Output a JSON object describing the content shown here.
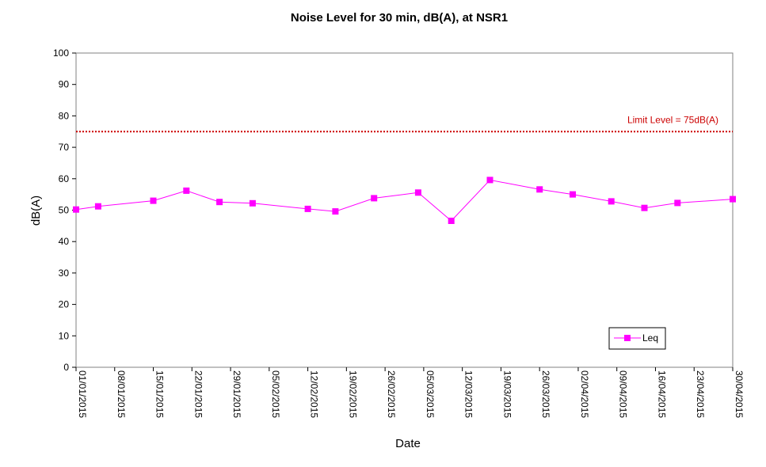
{
  "chart_data": {
    "type": "line",
    "title": "Noise Level for 30 min, dB(A), at NSR1",
    "xlabel": "Date",
    "ylabel": "dB(A)",
    "ylim": [
      0,
      100
    ],
    "yticks": [
      0,
      10,
      20,
      30,
      40,
      50,
      60,
      70,
      80,
      90,
      100
    ],
    "xlim": [
      "01/01/2015",
      "30/04/2015"
    ],
    "xtick_labels": [
      "01/01/2015",
      "08/01/2015",
      "15/01/2015",
      "22/01/2015",
      "29/01/2015",
      "05/02/2015",
      "12/02/2015",
      "19/02/2015",
      "26/02/2015",
      "05/03/2015",
      "12/03/2015",
      "19/03/2015",
      "26/03/2015",
      "02/04/2015",
      "09/04/2015",
      "16/04/2015",
      "23/04/2015",
      "30/04/2015"
    ],
    "grid": false,
    "legend": {
      "position": "bottom-right",
      "entries": [
        "Leq"
      ]
    },
    "limit": {
      "label": "Limit Level  = 75dB(A)",
      "value": 75,
      "color": "#cc0000"
    },
    "series": [
      {
        "name": "Leq",
        "color": "#ff00ff",
        "x": [
          "01/01/2015",
          "05/01/2015",
          "15/01/2015",
          "21/01/2015",
          "27/01/2015",
          "02/02/2015",
          "12/02/2015",
          "17/02/2015",
          "24/02/2015",
          "04/03/2015",
          "10/03/2015",
          "17/03/2015",
          "26/03/2015",
          "01/04/2015",
          "08/04/2015",
          "14/04/2015",
          "20/04/2015",
          "30/04/2015"
        ],
        "y": [
          50.2,
          51.2,
          53.0,
          56.2,
          52.6,
          52.2,
          50.4,
          49.6,
          53.8,
          55.6,
          46.6,
          59.6,
          56.6,
          55.0,
          52.8,
          50.7,
          52.3,
          53.5
        ]
      }
    ]
  }
}
